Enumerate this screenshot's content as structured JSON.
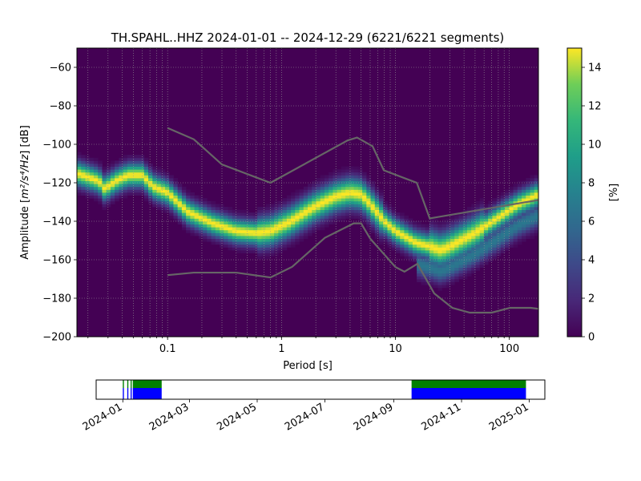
{
  "chart_data": [
    {
      "type": "heatmap",
      "title": "TH.SPAHL..HHZ   2024-01-01 -- 2024-12-29  (6221/6221 segments)",
      "xlabel": "Period [s]",
      "ylabel_main": "Amplitude [",
      "ylabel_math": "m²/s⁴/Hz",
      "ylabel_tail": "] [dB]",
      "xscale": "log",
      "xlim": [
        0.016,
        180
      ],
      "ylim": [
        -200,
        -50
      ],
      "xticks": [
        {
          "value": 0.1,
          "label": "0.1"
        },
        {
          "value": 1,
          "label": "1"
        },
        {
          "value": 10,
          "label": "10"
        },
        {
          "value": 100,
          "label": "100"
        }
      ],
      "yticks": [
        {
          "value": -60,
          "label": "−60"
        },
        {
          "value": -80,
          "label": "−80"
        },
        {
          "value": -100,
          "label": "−100"
        },
        {
          "value": -120,
          "label": "−120"
        },
        {
          "value": -140,
          "label": "−140"
        },
        {
          "value": -160,
          "label": "−160"
        },
        {
          "value": -180,
          "label": "−180"
        },
        {
          "value": -200,
          "label": "−200"
        }
      ],
      "grid": true,
      "colormap": "viridis",
      "colorbar": {
        "label": "[%]",
        "range": [
          0,
          15
        ],
        "ticks": [
          {
            "value": 0,
            "label": "0"
          },
          {
            "value": 2,
            "label": "2"
          },
          {
            "value": 4,
            "label": "4"
          },
          {
            "value": 6,
            "label": "6"
          },
          {
            "value": 8,
            "label": "8"
          },
          {
            "value": 10,
            "label": "10"
          },
          {
            "value": 12,
            "label": "12"
          },
          {
            "value": 14,
            "label": "14"
          }
        ]
      },
      "noise_models": {
        "color": "#666666",
        "high": {
          "x": [
            0.1,
            0.17,
            0.3,
            0.8,
            3.8,
            4.6,
            6.3,
            7.9,
            15.4,
            20,
            354.8
          ],
          "y": [
            -91.5,
            -97.4,
            -110.5,
            -120,
            -98,
            -96.5,
            -101,
            -113.5,
            -120,
            -138.5,
            -126
          ]
        },
        "low": {
          "x": [
            0.1,
            0.17,
            0.4,
            0.8,
            1.24,
            2.4,
            4.3,
            5,
            6,
            10,
            12,
            15.6,
            21.9,
            31.6,
            45,
            70,
            101,
            154,
            328
          ],
          "y": [
            -168,
            -166.7,
            -166.7,
            -169.2,
            -163.7,
            -148.6,
            -141.1,
            -141.1,
            -149,
            -163.8,
            -166.2,
            -162.1,
            -177.5,
            -185,
            -187.5,
            -187.5,
            -185,
            -185,
            -187.5
          ]
        }
      },
      "psd_mode": {
        "x": [
          0.016,
          0.025,
          0.028,
          0.035,
          0.045,
          0.06,
          0.075,
          0.1,
          0.15,
          0.25,
          0.4,
          0.6,
          0.8,
          1.2,
          2,
          3,
          4,
          5,
          6,
          8,
          10,
          15,
          20,
          25,
          30,
          50,
          80,
          120,
          180
        ],
        "y": [
          -115,
          -119,
          -123,
          -119,
          -116,
          -116,
          -122,
          -125,
          -135,
          -141,
          -145,
          -146,
          -145,
          -140,
          -132,
          -127,
          -125,
          -126,
          -131,
          -140,
          -145,
          -151,
          -153,
          -155,
          -153,
          -146,
          -138,
          -131,
          -126
        ]
      }
    },
    {
      "type": "timeline",
      "xlim": [
        "2023-12-08",
        "2025-01-15"
      ],
      "xticks": [
        {
          "value": "2024-01-01",
          "label": "2024-01"
        },
        {
          "value": "2024-03-01",
          "label": "2024-03"
        },
        {
          "value": "2024-05-01",
          "label": "2024-05"
        },
        {
          "value": "2024-07-01",
          "label": "2024-07"
        },
        {
          "value": "2024-09-01",
          "label": "2024-09"
        },
        {
          "value": "2024-11-01",
          "label": "2024-11"
        },
        {
          "value": "2025-01-01",
          "label": "2025-01"
        }
      ],
      "data_coverage": {
        "color": "#008000",
        "spans": [
          [
            "2024-01-01",
            "2024-01-02"
          ],
          [
            "2024-01-05",
            "2024-01-06"
          ],
          [
            "2024-01-08",
            "2024-01-09"
          ],
          [
            "2024-01-10",
            "2024-02-05"
          ],
          [
            "2024-09-17",
            "2024-12-29"
          ]
        ]
      },
      "psd_coverage": {
        "color": "#0000ff",
        "spans": [
          [
            "2024-01-01",
            "2024-01-02"
          ],
          [
            "2024-01-05",
            "2024-01-06"
          ],
          [
            "2024-01-08",
            "2024-01-09"
          ],
          [
            "2024-01-10",
            "2024-02-05"
          ],
          [
            "2024-09-17",
            "2024-12-29"
          ]
        ]
      }
    }
  ]
}
